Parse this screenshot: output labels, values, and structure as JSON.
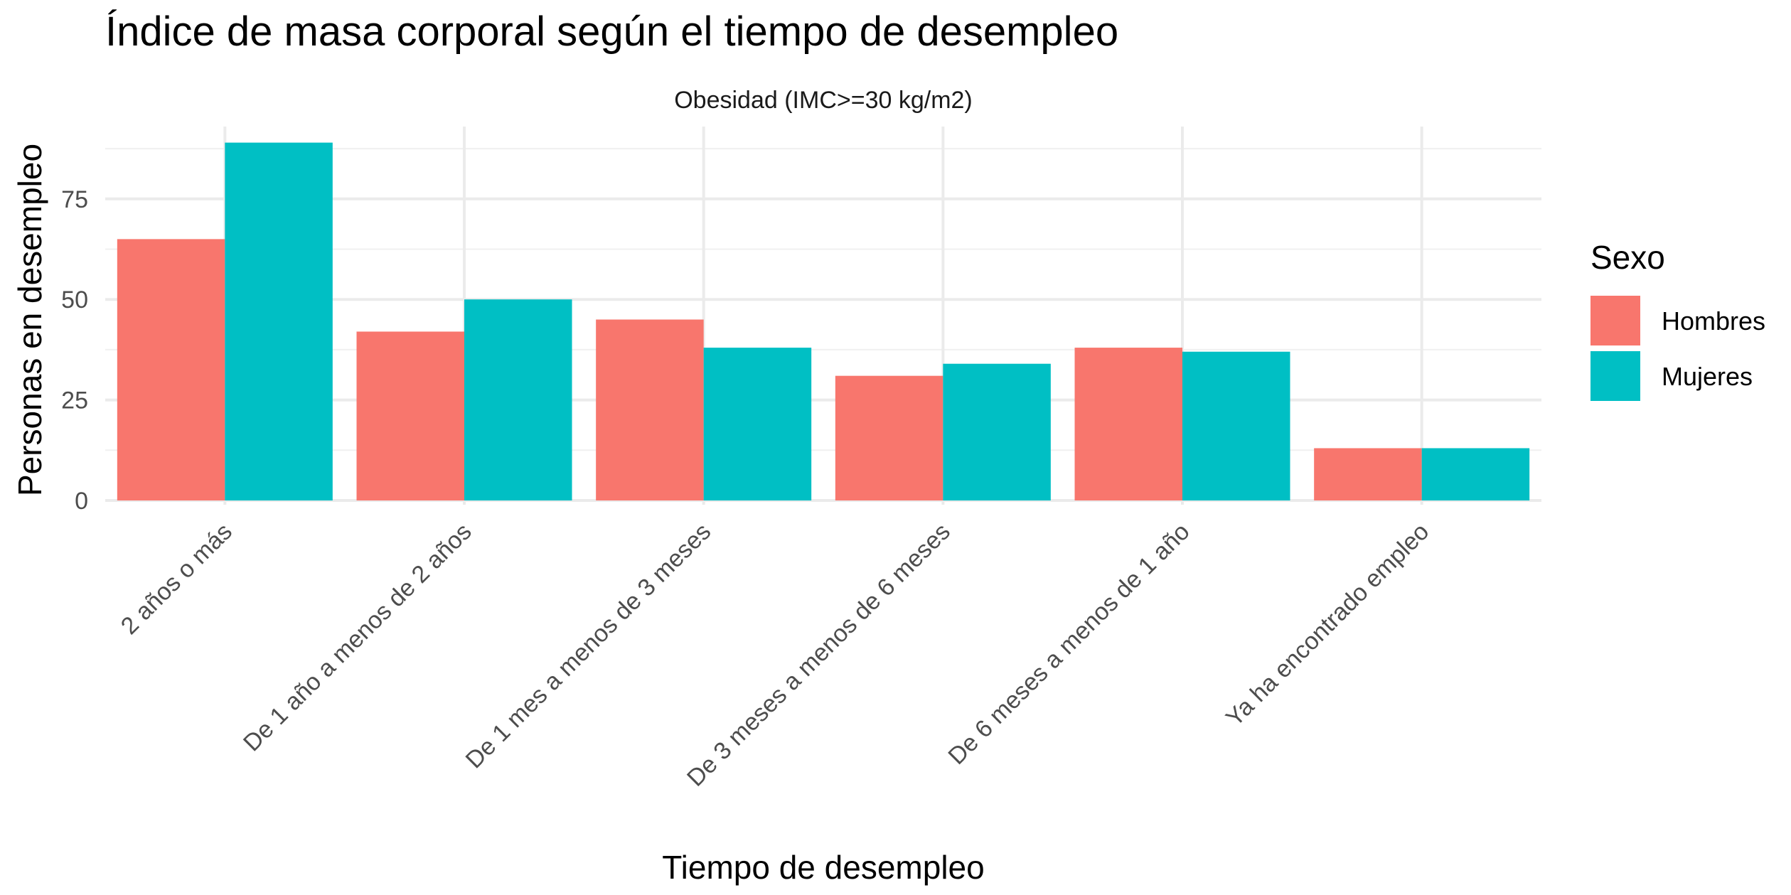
{
  "chart_data": {
    "type": "bar",
    "title": "Índice de masa corporal según el tiempo de desempleo",
    "facet_label": "Obesidad (IMC>=30 kg/m2)",
    "xlabel": "Tiempo de desempleo",
    "ylabel": "Personas en desempleo",
    "categories": [
      "2 años o más",
      "De 1 año a menos de 2 años",
      "De 1 mes a menos de 3 meses",
      "De 3 meses a menos de 6 meses",
      "De 6 meses a menos de 1 año",
      "Ya ha encontrado empleo"
    ],
    "series": [
      {
        "name": "Hombres",
        "color": "#F8766D",
        "values": [
          65,
          42,
          45,
          31,
          38,
          13
        ]
      },
      {
        "name": "Mujeres",
        "color": "#00BFC4",
        "values": [
          89,
          50,
          38,
          34,
          37,
          13
        ]
      }
    ],
    "ylim": [
      0,
      93
    ],
    "yticks": [
      0,
      25,
      50,
      75
    ],
    "grid": true,
    "legend": {
      "title": "Sexo",
      "position": "right"
    }
  }
}
